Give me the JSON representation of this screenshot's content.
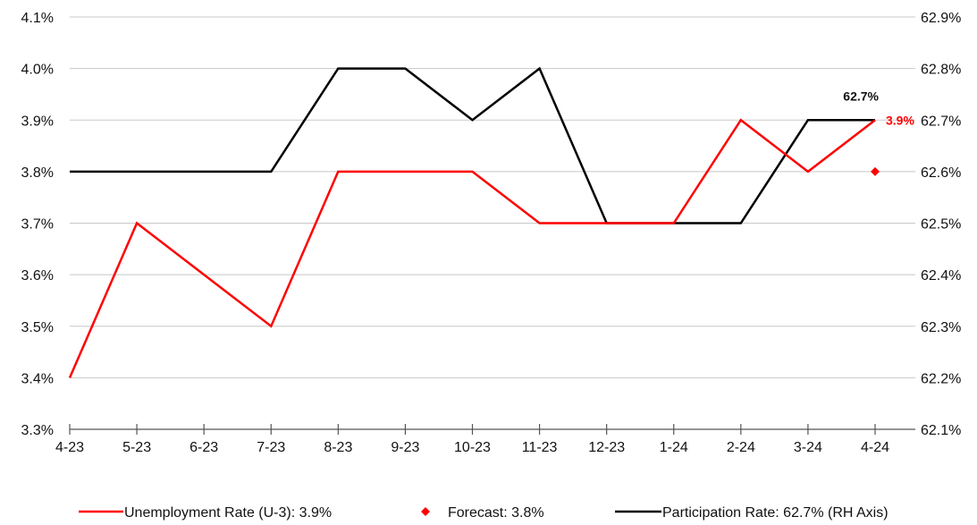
{
  "chart_data": {
    "type": "line",
    "categories": [
      "4-23",
      "5-23",
      "6-23",
      "7-23",
      "8-23",
      "9-23",
      "10-23",
      "11-23",
      "12-23",
      "1-24",
      "2-24",
      "3-24",
      "4-24"
    ],
    "left_axis": {
      "ylim": [
        3.3,
        4.1
      ],
      "ticks": [
        3.3,
        3.4,
        3.5,
        3.6,
        3.7,
        3.8,
        3.9,
        4.0,
        4.1
      ],
      "tick_labels": [
        "3.3%",
        "3.4%",
        "3.5%",
        "3.6%",
        "3.7%",
        "3.8%",
        "3.9%",
        "4.0%",
        "4.1%"
      ]
    },
    "right_axis": {
      "ylim": [
        62.1,
        62.9
      ],
      "ticks": [
        62.1,
        62.2,
        62.3,
        62.4,
        62.5,
        62.6,
        62.7,
        62.8,
        62.9
      ],
      "tick_labels": [
        "62.1%",
        "62.2%",
        "62.3%",
        "62.4%",
        "62.5%",
        "62.6%",
        "62.7%",
        "62.8%",
        "62.9%"
      ]
    },
    "grid": true,
    "legend_position": "bottom",
    "series": [
      {
        "name": "Unemployment Rate (U-3): 3.9%",
        "axis": "left",
        "color": "#ff0000",
        "values": [
          3.4,
          3.7,
          3.6,
          3.5,
          3.8,
          3.8,
          3.8,
          3.7,
          3.7,
          3.7,
          3.9,
          3.8,
          3.9
        ],
        "end_label": "3.9%"
      },
      {
        "name": "Forecast: 3.8%",
        "axis": "left",
        "color": "#ff0000",
        "marker": "diamond",
        "category": "4-24",
        "value": 3.8
      },
      {
        "name": "Participation Rate: 62.7% (RH Axis)",
        "axis": "right",
        "color": "#000000",
        "values": [
          62.6,
          62.6,
          62.6,
          62.6,
          62.8,
          62.8,
          62.7,
          62.8,
          62.5,
          62.5,
          62.5,
          62.7,
          62.7
        ],
        "end_label": "62.7%"
      }
    ]
  }
}
